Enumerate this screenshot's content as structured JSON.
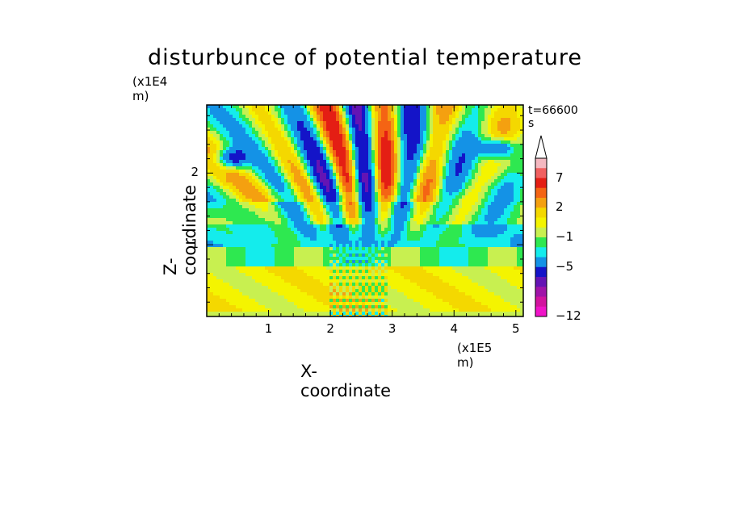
{
  "figure": {
    "title": "disturbunce of potential temperature",
    "timestamp": "t=66600 s"
  },
  "chart_data": {
    "type": "heatmap",
    "title": "disturbunce of potential temperature",
    "xlabel": "X-coordinate",
    "ylabel": "Z-coordinate",
    "x_unit": "(x1E5 m)",
    "y_unit": "(x1E4 m)",
    "x_ticks": [
      "1",
      "2",
      "3",
      "4",
      "5"
    ],
    "y_ticks": [
      "1",
      "2"
    ],
    "xlim": [
      0,
      5.12
    ],
    "ylim": [
      0,
      2.95
    ],
    "colorbar": {
      "labels": [
        "7",
        "2",
        "−1",
        "−5",
        "−12"
      ],
      "colors": [
        "#f4b8c0",
        "#f06060",
        "#e41e14",
        "#f46414",
        "#f4a010",
        "#f4d800",
        "#f4f400",
        "#c8f050",
        "#2ee850",
        "#14ecec",
        "#1492e6",
        "#1414c8",
        "#6414b4",
        "#a014a8",
        "#d2149e",
        "#f014c8"
      ]
    },
    "field_description": "banded horizontal layers with diagonal wave patterns radiating upward from x~2.5"
  }
}
